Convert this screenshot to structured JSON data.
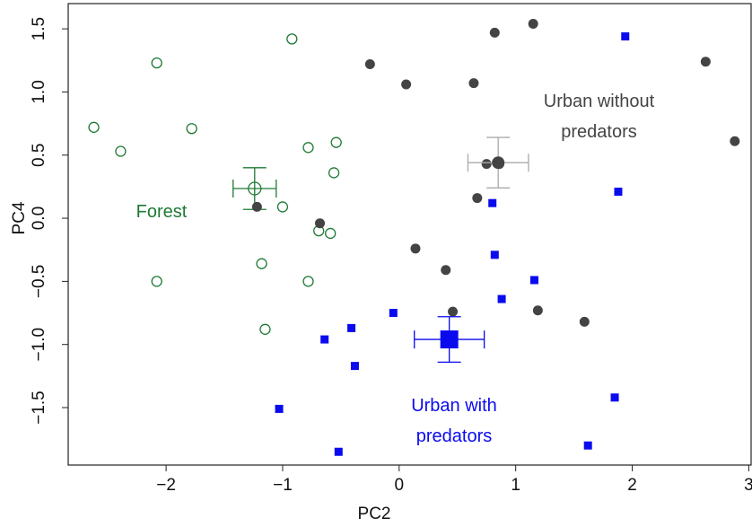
{
  "chart_data": {
    "type": "scatter",
    "x_label": "PC2",
    "y_label": "PC4",
    "xlim": [
      -2.84,
      3.02
    ],
    "ylim": [
      -1.955,
      1.7
    ],
    "xticks": [
      {
        "value": -2,
        "label": "−2"
      },
      {
        "value": -1,
        "label": "−1"
      },
      0,
      1,
      2,
      3
    ],
    "yticks": [
      {
        "value": -1.5,
        "label": "−1.5"
      },
      {
        "value": -1,
        "label": "−1.0"
      },
      {
        "value": -0.5,
        "label": "−0.5"
      },
      {
        "value": 0,
        "label": "0.0"
      },
      {
        "value": 0.5,
        "label": "0.5"
      },
      {
        "value": 1,
        "label": "1.0"
      },
      {
        "value": 1.5,
        "label": "1.5"
      }
    ],
    "series": [
      {
        "name": "Forest",
        "color": "#1e7a34",
        "marker": "open-circle",
        "errorbar_color": "#1e7a34",
        "x": [
          -2.62,
          -2.39,
          -2.08,
          -1.78,
          -0.92,
          -0.78,
          -0.54,
          -0.56,
          -1.0,
          -0.69,
          -0.59,
          -1.18,
          -2.08,
          -0.78,
          -1.15
        ],
        "y": [
          0.72,
          0.53,
          1.23,
          0.71,
          1.42,
          0.56,
          0.6,
          0.36,
          0.09,
          -0.1,
          -0.12,
          -0.36,
          -0.5,
          -0.5,
          -0.88
        ],
        "mean_x": -1.24,
        "mean_y": 0.235,
        "xerr": 0.185,
        "yerr": 0.165
      },
      {
        "name": "Urban without predators",
        "color": "#444444",
        "marker": "filled-circle",
        "errorbar_color": "#aaaaaa",
        "x": [
          -0.25,
          0.06,
          0.64,
          0.82,
          1.15,
          2.63,
          2.88,
          0.75,
          0.86,
          0.67,
          -1.22,
          -0.68,
          0.14,
          0.4,
          0.46,
          1.19,
          1.59
        ],
        "y": [
          1.22,
          1.06,
          1.07,
          1.47,
          1.54,
          1.24,
          0.61,
          0.43,
          0.43,
          0.16,
          0.09,
          -0.04,
          -0.24,
          -0.41,
          -0.74,
          -0.73,
          -0.82
        ],
        "mean_x": 0.85,
        "mean_y": 0.44,
        "xerr": 0.26,
        "yerr": 0.2
      },
      {
        "name": "Urban with predators",
        "color": "#0a0aee",
        "marker": "square",
        "errorbar_color": "#0a0aee",
        "x": [
          1.94,
          1.88,
          0.8,
          0.82,
          1.16,
          0.88,
          -0.05,
          -0.41,
          -0.64,
          -0.38,
          -1.03,
          -0.52,
          1.85,
          1.62
        ],
        "y": [
          1.44,
          0.21,
          0.12,
          -0.29,
          -0.49,
          -0.64,
          -0.75,
          -0.87,
          -0.96,
          -1.17,
          -1.51,
          -1.85,
          -1.42,
          -1.8
        ],
        "mean_x": 0.43,
        "mean_y": -0.96,
        "xerr": 0.3,
        "yerr": 0.18
      }
    ]
  }
}
